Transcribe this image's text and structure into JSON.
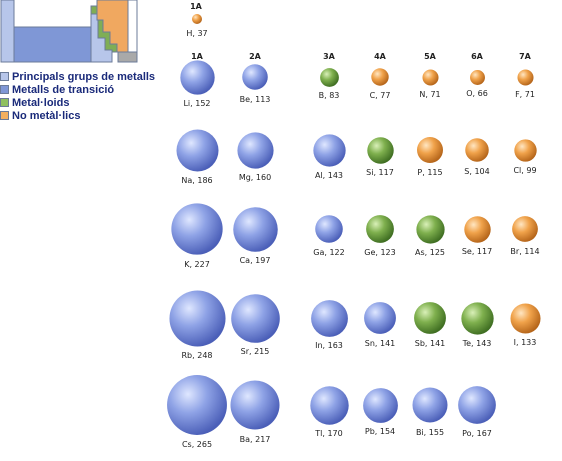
{
  "colors": {
    "main_group_metal": "#b7c6ea",
    "transition_metal": "#7f97d6",
    "metalloid": "#7fae55",
    "nonmetal": "#f0a860"
  },
  "legend": [
    {
      "label": "Principals grups de metalls",
      "color": "#b7c6ea"
    },
    {
      "label": "Metalls de transició",
      "color": "#7f97d6"
    },
    {
      "label": "Metal·loids",
      "color": "#8fc060"
    },
    {
      "label": "No metàl·lics",
      "color": "#f4b060"
    }
  ],
  "groups": {
    "h_header": "1A",
    "headers": [
      "1A",
      "2A",
      "3A",
      "4A",
      "5A",
      "6A",
      "7A"
    ]
  },
  "elements": [
    {
      "symbol": "H",
      "radius": 37,
      "label": "H, 37",
      "period": 0,
      "col": 0,
      "kind": "nonmetal"
    },
    {
      "symbol": "Li",
      "radius": 152,
      "label": "Li, 152",
      "period": 1,
      "col": 0,
      "kind": "metal"
    },
    {
      "symbol": "Be",
      "radius": 113,
      "label": "Be, 113",
      "period": 1,
      "col": 1,
      "kind": "metal"
    },
    {
      "symbol": "B",
      "radius": 83,
      "label": "B, 83",
      "period": 1,
      "col": 2,
      "kind": "metalloid"
    },
    {
      "symbol": "C",
      "radius": 77,
      "label": "C, 77",
      "period": 1,
      "col": 3,
      "kind": "nonmetal"
    },
    {
      "symbol": "N",
      "radius": 71,
      "label": "N, 71",
      "period": 1,
      "col": 4,
      "kind": "nonmetal"
    },
    {
      "symbol": "O",
      "radius": 66,
      "label": "O, 66",
      "period": 1,
      "col": 5,
      "kind": "nonmetal"
    },
    {
      "symbol": "F",
      "radius": 71,
      "label": "F, 71",
      "period": 1,
      "col": 6,
      "kind": "nonmetal"
    },
    {
      "symbol": "Na",
      "radius": 186,
      "label": "Na, 186",
      "period": 2,
      "col": 0,
      "kind": "metal"
    },
    {
      "symbol": "Mg",
      "radius": 160,
      "label": "Mg, 160",
      "period": 2,
      "col": 1,
      "kind": "metal"
    },
    {
      "symbol": "Al",
      "radius": 143,
      "label": "Al, 143",
      "period": 2,
      "col": 2,
      "kind": "metal"
    },
    {
      "symbol": "Si",
      "radius": 117,
      "label": "Si, 117",
      "period": 2,
      "col": 3,
      "kind": "metalloid"
    },
    {
      "symbol": "P",
      "radius": 115,
      "label": "P, 115",
      "period": 2,
      "col": 4,
      "kind": "nonmetal"
    },
    {
      "symbol": "S",
      "radius": 104,
      "label": "S, 104",
      "period": 2,
      "col": 5,
      "kind": "nonmetal"
    },
    {
      "symbol": "Cl",
      "radius": 99,
      "label": "Cl, 99",
      "period": 2,
      "col": 6,
      "kind": "nonmetal"
    },
    {
      "symbol": "K",
      "radius": 227,
      "label": "K, 227",
      "period": 3,
      "col": 0,
      "kind": "metal"
    },
    {
      "symbol": "Ca",
      "radius": 197,
      "label": "Ca, 197",
      "period": 3,
      "col": 1,
      "kind": "metal"
    },
    {
      "symbol": "Ga",
      "radius": 122,
      "label": "Ga, 122",
      "period": 3,
      "col": 2,
      "kind": "metal"
    },
    {
      "symbol": "Ge",
      "radius": 123,
      "label": "Ge, 123",
      "period": 3,
      "col": 3,
      "kind": "metalloid"
    },
    {
      "symbol": "As",
      "radius": 125,
      "label": "As, 125",
      "period": 3,
      "col": 4,
      "kind": "metalloid"
    },
    {
      "symbol": "Se",
      "radius": 117,
      "label": "Se, 117",
      "period": 3,
      "col": 5,
      "kind": "nonmetal"
    },
    {
      "symbol": "Br",
      "radius": 114,
      "label": "Br, 114",
      "period": 3,
      "col": 6,
      "kind": "nonmetal"
    },
    {
      "symbol": "Rb",
      "radius": 248,
      "label": "Rb, 248",
      "period": 4,
      "col": 0,
      "kind": "metal"
    },
    {
      "symbol": "Sr",
      "radius": 215,
      "label": "Sr, 215",
      "period": 4,
      "col": 1,
      "kind": "metal"
    },
    {
      "symbol": "In",
      "radius": 163,
      "label": "In, 163",
      "period": 4,
      "col": 2,
      "kind": "metal"
    },
    {
      "symbol": "Sn",
      "radius": 141,
      "label": "Sn, 141",
      "period": 4,
      "col": 3,
      "kind": "metal"
    },
    {
      "symbol": "Sb",
      "radius": 141,
      "label": "Sb, 141",
      "period": 4,
      "col": 4,
      "kind": "metalloid"
    },
    {
      "symbol": "Te",
      "radius": 143,
      "label": "Te, 143",
      "period": 4,
      "col": 5,
      "kind": "metalloid"
    },
    {
      "symbol": "I",
      "radius": 133,
      "label": "I, 133",
      "period": 4,
      "col": 6,
      "kind": "nonmetal"
    },
    {
      "symbol": "Cs",
      "radius": 265,
      "label": "Cs, 265",
      "period": 5,
      "col": 0,
      "kind": "metal"
    },
    {
      "symbol": "Ba",
      "radius": 217,
      "label": "Ba, 217",
      "period": 5,
      "col": 1,
      "kind": "metal"
    },
    {
      "symbol": "Tl",
      "radius": 170,
      "label": "Tl, 170",
      "period": 5,
      "col": 2,
      "kind": "metal"
    },
    {
      "symbol": "Pb",
      "radius": 154,
      "label": "Pb, 154",
      "period": 5,
      "col": 3,
      "kind": "metal"
    },
    {
      "symbol": "Bi",
      "radius": 155,
      "label": "Bi, 155",
      "period": 5,
      "col": 4,
      "kind": "metal"
    },
    {
      "symbol": "Po",
      "radius": 167,
      "label": "Po, 167",
      "period": 5,
      "col": 5,
      "kind": "metal"
    }
  ]
}
